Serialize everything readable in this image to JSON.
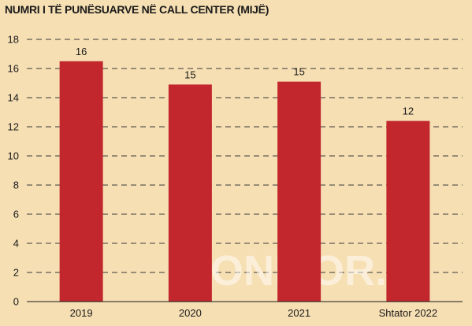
{
  "chart_data": {
    "type": "bar",
    "title": "NUMRI I TË PUNËSUARVE NË CALL CENTER (MIJË)",
    "categories": [
      "2019",
      "2020",
      "2021",
      "Shtator 2022"
    ],
    "values": [
      16.5,
      14.9,
      15.1,
      12.4
    ],
    "data_labels": [
      "16",
      "15",
      "15",
      "12"
    ],
    "ylim": [
      0,
      18
    ],
    "yticks": [
      0,
      2,
      4,
      6,
      8,
      10,
      12,
      14,
      16,
      18
    ],
    "grid": true,
    "bar_color": "#c1272d",
    "background": "#f6dfb3"
  },
  "watermark": "MONITOR.al"
}
